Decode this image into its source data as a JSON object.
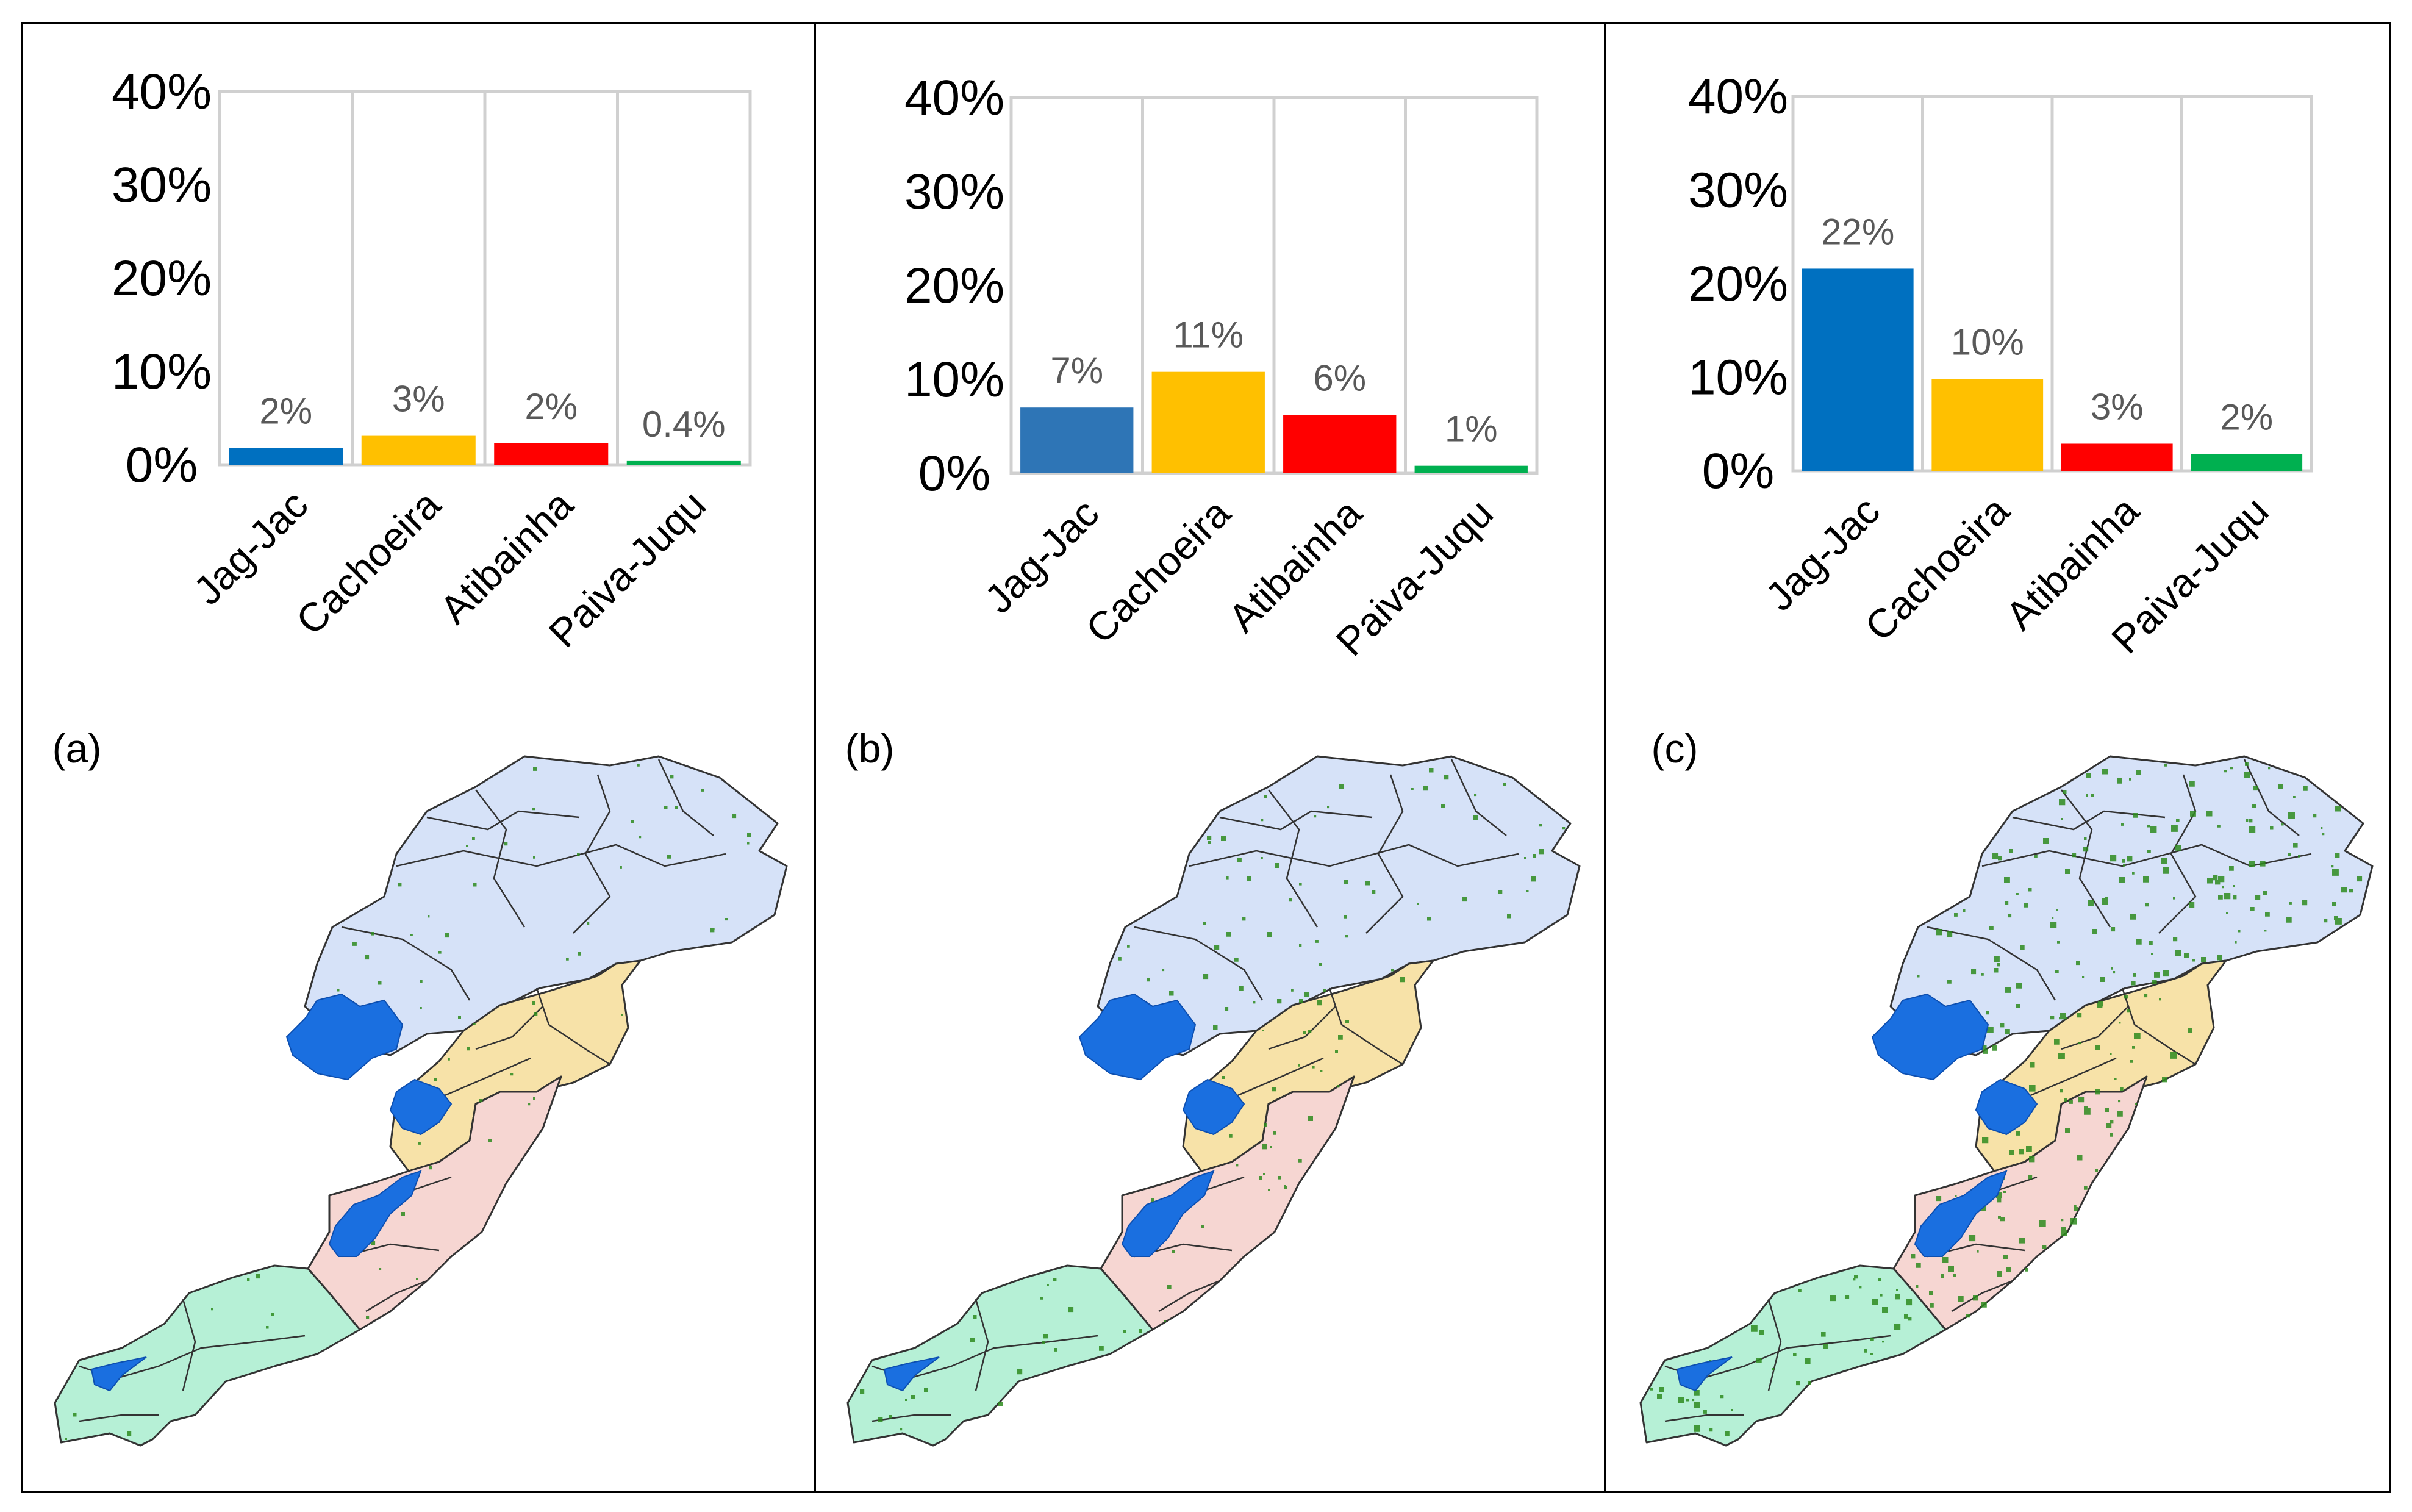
{
  "figure_labels": [
    "(a)",
    "(b)",
    "(c)"
  ],
  "colors": {
    "jag_jac": "#0070c0",
    "jag_jac_b": "#2e75b6",
    "cachoeira": "#ffc000",
    "atibainha": "#ff0000",
    "paiva_juqu": "#00b050",
    "map_blue_region": "#d6e2f8",
    "map_yellow_region": "#f7e2a8",
    "map_pink_region": "#f6d6d2",
    "map_green_region": "#b6f0d6",
    "reservoir": "#1a6fe0",
    "vegetation_dots": "#2e8b1e"
  },
  "chart_data": [
    {
      "type": "bar",
      "panel": "(a)",
      "categories": [
        "Jag-Jac",
        "Cachoeira",
        "Atibainha",
        "Paiva-Juqu"
      ],
      "values": [
        1.8,
        3.1,
        2.3,
        0.4
      ],
      "data_labels": [
        "2%",
        "3%",
        "2%",
        "0.4%"
      ],
      "yticks": [
        "0%",
        "10%",
        "20%",
        "30%",
        "40%"
      ],
      "ylim": [
        0,
        40
      ],
      "title": "",
      "xlabel": "",
      "ylabel": ""
    },
    {
      "type": "bar",
      "panel": "(b)",
      "categories": [
        "Jag-Jac",
        "Cachoeira",
        "Atibainha",
        "Paiva-Juqu"
      ],
      "values": [
        7.0,
        10.8,
        6.2,
        0.8
      ],
      "data_labels": [
        "7%",
        "11%",
        "6%",
        "1%"
      ],
      "yticks": [
        "0%",
        "10%",
        "20%",
        "30%",
        "40%"
      ],
      "ylim": [
        0,
        40
      ],
      "title": "",
      "xlabel": "",
      "ylabel": ""
    },
    {
      "type": "bar",
      "panel": "(c)",
      "categories": [
        "Jag-Jac",
        "Cachoeira",
        "Atibainha",
        "Paiva-Juqu"
      ],
      "values": [
        21.6,
        9.8,
        2.9,
        1.8
      ],
      "data_labels": [
        "22%",
        "10%",
        "3%",
        "2%"
      ],
      "yticks": [
        "0%",
        "10%",
        "20%",
        "30%",
        "40%"
      ],
      "ylim": [
        0,
        40
      ],
      "title": "",
      "xlabel": "",
      "ylabel": ""
    }
  ],
  "map_vegetation_density": [
    0.25,
    0.5,
    1.0
  ]
}
